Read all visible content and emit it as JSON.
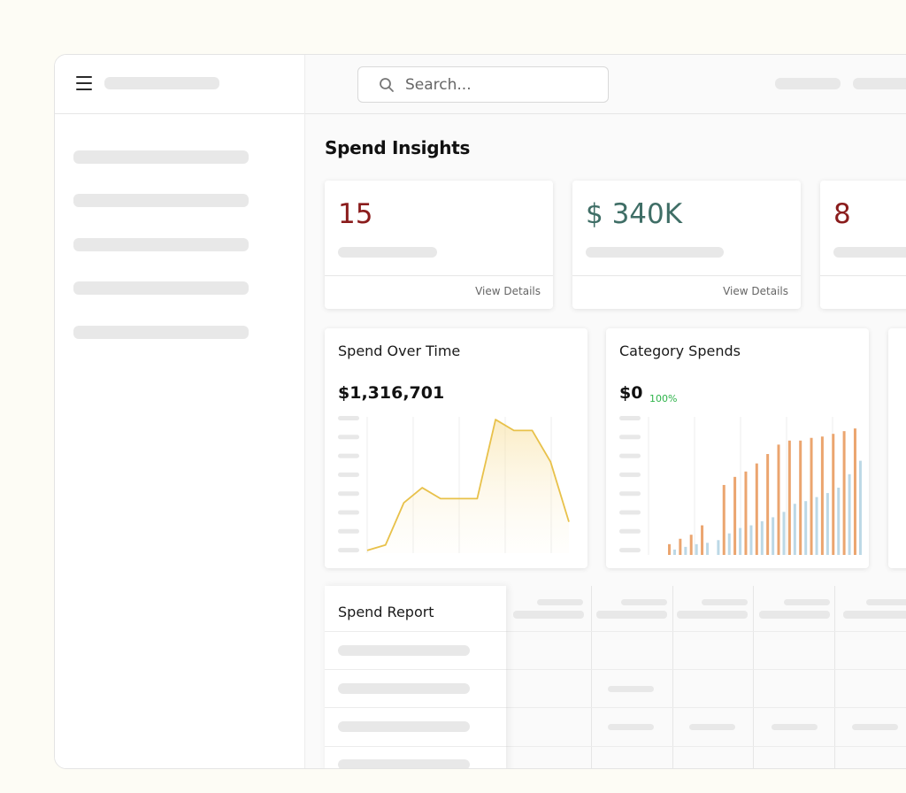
{
  "search": {
    "placeholder": "Search..."
  },
  "page": {
    "title": "Spend Insights"
  },
  "stats": [
    {
      "value": "15",
      "color": "#8a1c1c",
      "link": "View Details"
    },
    {
      "value": "$ 340K",
      "color": "#3f6e66",
      "link": "View Details"
    },
    {
      "value": "8",
      "color": "#8a1c1c"
    }
  ],
  "spend_over_time": {
    "title": "Spend Over Time",
    "total": "$1,316,701"
  },
  "category_spends": {
    "title": "Category Spends",
    "total": "$0",
    "change": "100%"
  },
  "report": {
    "title": "Spend Report"
  },
  "chart_data": [
    {
      "type": "area",
      "title": "Spend Over Time",
      "x": [
        0,
        1,
        2,
        3,
        4,
        5,
        6,
        7,
        8,
        9,
        10,
        11
      ],
      "values": [
        2,
        6,
        37,
        48,
        40,
        40,
        40,
        98,
        90,
        90,
        67,
        23
      ],
      "ylim": [
        0,
        100
      ],
      "color": "#e8c14a"
    },
    {
      "type": "bar",
      "title": "Category Spends",
      "categories": [
        "1",
        "2",
        "3",
        "4",
        "5",
        "6",
        "7",
        "8",
        "9",
        "10",
        "11",
        "12",
        "13",
        "14",
        "15",
        "16",
        "17",
        "18"
      ],
      "series": [
        {
          "name": "orange",
          "color": "#eba56f",
          "values": [
            8,
            12,
            15,
            22,
            0,
            52,
            58,
            62,
            68,
            75,
            82,
            85,
            85,
            87,
            88,
            90,
            92,
            94
          ]
        },
        {
          "name": "blue",
          "color": "#bcd8e6",
          "values": [
            4,
            6,
            8,
            9,
            11,
            16,
            20,
            22,
            25,
            28,
            32,
            38,
            40,
            43,
            46,
            50,
            60,
            70
          ]
        }
      ],
      "ylim": [
        0,
        100
      ]
    }
  ]
}
